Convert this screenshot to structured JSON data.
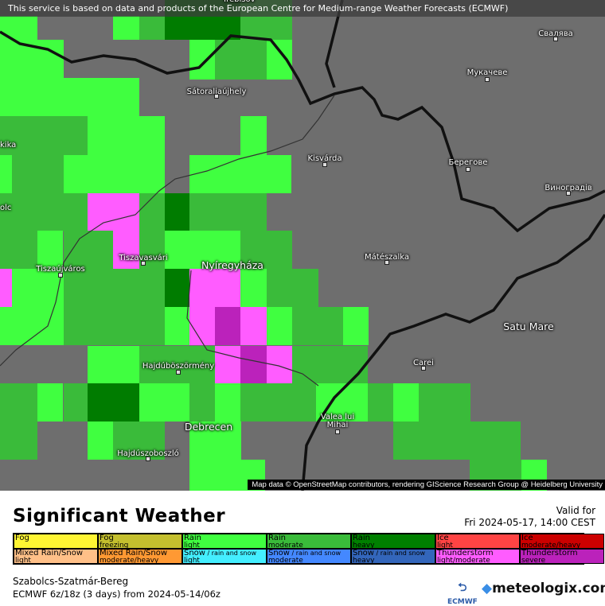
{
  "map": {
    "banner": "This service is based on data and products of the European Centre for Medium-range Weather Forecasts (ECMWF)",
    "attribution": "Map data © OpenStreetMap contributors, rendering GIScience Research Group @ Heidelberg University",
    "cities": [
      {
        "name": "Sátoraljaújhely",
        "cls": ""
      },
      {
        "name": "Свалява",
        "cls": ""
      },
      {
        "name": "Мукачеве",
        "cls": ""
      },
      {
        "name": "Kisvárda",
        "cls": ""
      },
      {
        "name": "Берегове",
        "cls": ""
      },
      {
        "name": "Виноградів",
        "cls": ""
      },
      {
        "name": "Tiszavasvári",
        "cls": ""
      },
      {
        "name": "Tiszaújváros",
        "cls": ""
      },
      {
        "name": "Nyíregyháza",
        "cls": "big"
      },
      {
        "name": "Mátészalka",
        "cls": ""
      },
      {
        "name": "Satu Mare",
        "cls": "big"
      },
      {
        "name": "Carei",
        "cls": ""
      },
      {
        "name": "Hajdúböszörmény",
        "cls": ""
      },
      {
        "name": "Valea lui Mihai",
        "cls": ""
      },
      {
        "name": "Debrecen",
        "cls": "big"
      },
      {
        "name": "Hajdúszoboszló",
        "cls": ""
      },
      {
        "name": "Trebišov",
        "cls": ""
      },
      {
        "name": "kika",
        "cls": ""
      },
      {
        "name": "olc",
        "cls": ""
      }
    ],
    "colors": {
      "gray": "#6e6e6e",
      "rain_light": "#40ff40",
      "rain_moderate": "#3abb3a",
      "rain_heavy": "#007c00",
      "thunder_light": "#ff5cff",
      "thunder_severe": "#bb22bb"
    }
  },
  "header": {
    "title": "Significant Weather",
    "valid_label": "Valid for",
    "valid_time": "Fri 2024-05-17, 14:00 CEST"
  },
  "legend": [
    {
      "main": "Fog",
      "sub": "",
      "color": "#fff533"
    },
    {
      "main": "Fog",
      "sub": "freezing",
      "color": "#c4bf2e"
    },
    {
      "main": "Rain",
      "sub": "light",
      "color": "#40ff40"
    },
    {
      "main": "Rain",
      "sub": "moderate",
      "color": "#3abb3a"
    },
    {
      "main": "Rain",
      "sub": "heavy",
      "color": "#008000"
    },
    {
      "main": "Ice",
      "sub": "light",
      "color": "#ff4444"
    },
    {
      "main": "Ice",
      "sub": "moderate/heavy",
      "color": "#cc0000"
    },
    {
      "main": "Mixed Rain/Snow",
      "sub": "light",
      "color": "#ffc088"
    },
    {
      "main": "Mixed Rain/Snow",
      "sub": "moderate/heavy",
      "color": "#ff9933"
    },
    {
      "main": "Snow",
      "extra": " / rain and snow",
      "sub": "light",
      "color": "#44eeff"
    },
    {
      "main": "Snow",
      "extra": " / rain and snow",
      "sub": "moderate",
      "color": "#4488ff"
    },
    {
      "main": "Snow",
      "extra": " / rain and snow",
      "sub": "heavy",
      "color": "#3366bb"
    },
    {
      "main": "Thunderstorm",
      "sub": "light/moderate",
      "color": "#ff5cff"
    },
    {
      "main": "Thunderstorm",
      "sub": "severe",
      "color": "#bb22bb"
    }
  ],
  "footer": {
    "region": "Szabolcs-Szatmár-Bereg",
    "model": "ECMWF 6z/18z (3 days) from  2024-05-14/06z",
    "ecmwf_logo": "ECMWF",
    "brand": "meteologix.com"
  }
}
